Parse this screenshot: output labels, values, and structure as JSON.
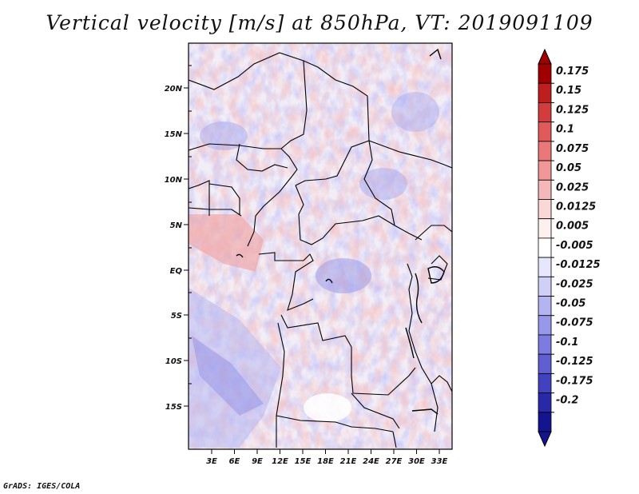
{
  "title": "Vertical velocity [m/s] at 850hPa, VT: 2019091109",
  "footer": "GrADS: IGES/COLA",
  "map": {
    "lat_labels": [
      "20N",
      "15N",
      "10N",
      "5N",
      "EQ",
      "5S",
      "10S",
      "15S"
    ],
    "lon_labels": [
      "3E",
      "6E",
      "9E",
      "12E",
      "15E",
      "18E",
      "21E",
      "24E",
      "27E",
      "30E",
      "33E"
    ]
  },
  "colorbar": {
    "labels": [
      "0.175",
      "0.15",
      "0.125",
      "0.1",
      "0.075",
      "0.05",
      "0.025",
      "0.0125",
      "0.005",
      "-0.005",
      "-0.0125",
      "-0.025",
      "-0.05",
      "-0.075",
      "-0.1",
      "-0.125",
      "-0.175",
      "-0.2"
    ],
    "colors": [
      "#a00000",
      "#be1e1e",
      "#d23c3c",
      "#e05a5a",
      "#eb7878",
      "#f09898",
      "#f5b8b8",
      "#fad8d8",
      "#fff0f0",
      "#ffffff",
      "#e6e6ff",
      "#cfcff8",
      "#b4b4f2",
      "#9898ea",
      "#7c7ce0",
      "#5f5fd2",
      "#4242c0",
      "#2828a8",
      "#141490"
    ]
  }
}
